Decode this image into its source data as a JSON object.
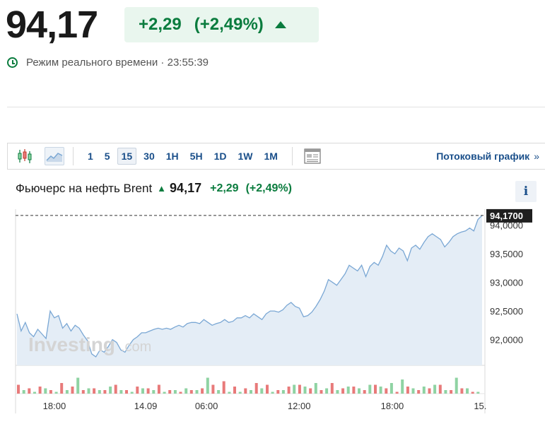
{
  "quote": {
    "price": "94,17",
    "change": "+2,29",
    "change_pct": "(+2,49%)",
    "realtime_label": "Режим реального времени",
    "time": "23:55:39"
  },
  "toolbar": {
    "intervals": [
      "1",
      "5",
      "15",
      "30",
      "1H",
      "5H",
      "1D",
      "1W",
      "1M"
    ],
    "active_interval": "15",
    "stream_label": "Потоковый график",
    "stream_chevron": "»"
  },
  "instrument": {
    "name": "Фьючерс на нефть Brent",
    "value": "94,17",
    "change": "+2,29",
    "change_pct": "(+2,49%)",
    "info_label": "i"
  },
  "watermark": {
    "brand": "Investing",
    "suffix": ".com"
  },
  "colors": {
    "positive": "#0a7c3e",
    "link": "#1a4f8a",
    "line": "#7aa7d4",
    "area": "#e4edf6",
    "vol_up": "#8fd3a3",
    "vol_down": "#e87a7a"
  },
  "chart_data": {
    "type": "area",
    "x_tick_labels": [
      "18:00",
      "14.09",
      "06:00",
      "12:00",
      "18:00",
      "15."
    ],
    "y_tick_labels": [
      "94,0000",
      "93,5000",
      "93,0000",
      "92,5000",
      "92,0000"
    ],
    "y_ticks": [
      94.0,
      93.5,
      93.0,
      92.5,
      92.0
    ],
    "ylim": [
      91.55,
      94.28
    ],
    "last_value_label": "94,1700",
    "last_value": 94.17,
    "values": [
      92.45,
      92.15,
      92.3,
      92.12,
      92.05,
      92.18,
      92.1,
      92.02,
      92.5,
      92.38,
      92.42,
      92.2,
      92.28,
      92.15,
      92.25,
      92.2,
      92.08,
      91.98,
      91.75,
      91.7,
      91.82,
      91.78,
      91.88,
      92.0,
      91.95,
      91.82,
      91.78,
      91.9,
      92.0,
      92.05,
      92.12,
      92.12,
      92.15,
      92.18,
      92.2,
      92.18,
      92.2,
      92.18,
      92.22,
      92.25,
      92.22,
      92.28,
      92.3,
      92.3,
      92.28,
      92.35,
      92.3,
      92.25,
      92.28,
      92.3,
      92.35,
      92.3,
      92.32,
      92.38,
      92.38,
      92.42,
      92.38,
      92.45,
      92.4,
      92.35,
      92.45,
      92.5,
      92.5,
      92.48,
      92.52,
      92.6,
      92.65,
      92.58,
      92.55,
      92.4,
      92.42,
      92.48,
      92.58,
      92.7,
      92.85,
      93.05,
      93.0,
      92.95,
      93.05,
      93.15,
      93.3,
      93.25,
      93.2,
      93.3,
      93.1,
      93.28,
      93.35,
      93.3,
      93.45,
      93.65,
      93.55,
      93.5,
      93.6,
      93.55,
      93.38,
      93.6,
      93.65,
      93.58,
      93.7,
      93.8,
      93.85,
      93.8,
      93.75,
      93.62,
      93.7,
      93.8,
      93.85,
      93.88,
      93.9,
      93.95,
      93.9,
      94.1,
      94.17
    ],
    "volume_up": [
      2,
      1,
      3,
      1,
      2,
      9,
      3,
      2,
      4,
      2,
      1,
      3,
      2,
      1,
      2,
      3,
      2,
      9,
      2,
      1,
      1,
      2,
      3,
      1,
      2,
      5,
      4,
      6,
      3,
      2,
      4,
      3,
      5,
      4,
      6,
      8,
      3,
      4,
      5,
      2,
      9,
      3,
      1
    ],
    "volume_down": [
      5,
      3,
      4,
      2,
      6,
      4,
      2,
      3,
      2,
      5,
      2,
      4,
      3,
      5,
      2,
      1,
      2,
      3,
      5,
      7,
      4,
      3,
      6,
      5,
      2,
      4,
      5,
      3,
      2,
      6,
      3,
      4,
      2,
      5,
      3,
      1,
      4,
      2,
      3,
      5,
      2,
      3,
      1
    ]
  }
}
